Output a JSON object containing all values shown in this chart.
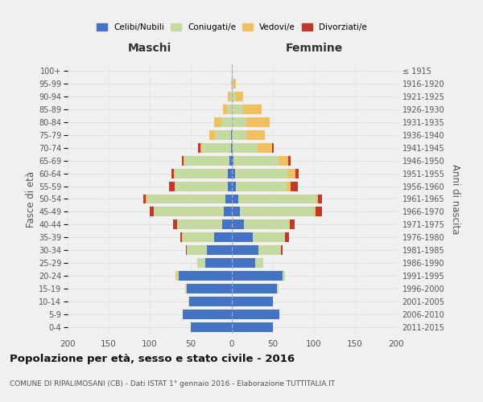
{
  "age_groups": [
    "0-4",
    "5-9",
    "10-14",
    "15-19",
    "20-24",
    "25-29",
    "30-34",
    "35-39",
    "40-44",
    "45-49",
    "50-54",
    "55-59",
    "60-64",
    "65-69",
    "70-74",
    "75-79",
    "80-84",
    "85-89",
    "90-94",
    "95-99",
    "100+"
  ],
  "birth_years": [
    "2011-2015",
    "2006-2010",
    "2001-2005",
    "1996-2000",
    "1991-1995",
    "1986-1990",
    "1981-1985",
    "1976-1980",
    "1971-1975",
    "1966-1970",
    "1961-1965",
    "1956-1960",
    "1951-1955",
    "1946-1950",
    "1941-1945",
    "1936-1940",
    "1931-1935",
    "1926-1930",
    "1921-1925",
    "1916-1920",
    "≤ 1915"
  ],
  "males": {
    "celibi": [
      50,
      60,
      52,
      55,
      65,
      32,
      30,
      22,
      12,
      10,
      8,
      5,
      5,
      3,
      1,
      1,
      0,
      0,
      0,
      0,
      0
    ],
    "coniugati": [
      0,
      0,
      1,
      2,
      3,
      10,
      25,
      38,
      55,
      85,
      95,
      65,
      65,
      55,
      35,
      20,
      14,
      6,
      2,
      1,
      0
    ],
    "vedovi": [
      0,
      0,
      0,
      0,
      1,
      0,
      0,
      1,
      0,
      0,
      2,
      0,
      1,
      1,
      2,
      6,
      8,
      5,
      3,
      0,
      0
    ],
    "divorziati": [
      0,
      0,
      0,
      0,
      0,
      0,
      1,
      2,
      5,
      5,
      3,
      6,
      3,
      2,
      3,
      0,
      0,
      0,
      0,
      0,
      0
    ]
  },
  "females": {
    "nubili": [
      50,
      58,
      50,
      55,
      62,
      28,
      32,
      25,
      15,
      10,
      8,
      5,
      4,
      2,
      1,
      0,
      0,
      0,
      0,
      0,
      0
    ],
    "coniugate": [
      0,
      0,
      0,
      2,
      3,
      10,
      28,
      40,
      55,
      90,
      95,
      62,
      65,
      55,
      30,
      18,
      18,
      14,
      5,
      2,
      0
    ],
    "vedove": [
      0,
      0,
      0,
      0,
      0,
      0,
      0,
      0,
      1,
      2,
      2,
      5,
      8,
      12,
      18,
      22,
      28,
      22,
      9,
      3,
      1
    ],
    "divorziate": [
      0,
      0,
      0,
      0,
      0,
      0,
      2,
      5,
      5,
      8,
      5,
      8,
      4,
      3,
      2,
      0,
      0,
      0,
      0,
      0,
      0
    ]
  },
  "colors": {
    "celibi": "#4472c4",
    "coniugati": "#c5d9a0",
    "vedovi": "#f0c060",
    "divorziati": "#c0392b"
  },
  "title": "Popolazione per età, sesso e stato civile - 2016",
  "subtitle": "COMUNE DI RIPALIMOSANI (CB) - Dati ISTAT 1° gennaio 2016 - Elaborazione TUTTITALIA.IT",
  "label_maschi": "Maschi",
  "label_femmine": "Femmine",
  "ylabel_left": "Fasce di età",
  "ylabel_right": "Anni di nascita",
  "legend_labels": [
    "Celibi/Nubili",
    "Coniugati/e",
    "Vedovi/e",
    "Divorziati/e"
  ],
  "xlim": 200,
  "background_color": "#f0f0f0",
  "grid_color": "#cccccc",
  "bar_height": 0.75
}
